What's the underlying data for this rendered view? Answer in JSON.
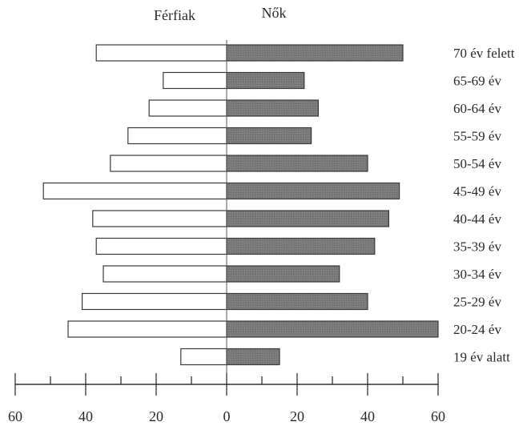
{
  "chart_data": {
    "type": "bar",
    "orientation": "horizontal-diverging",
    "legend": {
      "left": "Férfiak",
      "right": "Nők",
      "placement": "top-center"
    },
    "categories": [
      "70 év felett",
      "65-69 év",
      "60-64 év",
      "55-59 év",
      "50-54 év",
      "45-49 év",
      "40-44 év",
      "35-39 év",
      "30-34 év",
      "25-29 év",
      "20-24 év",
      "19 év alatt"
    ],
    "series": [
      {
        "name": "Férfiak",
        "values": [
          37,
          18,
          22,
          28,
          33,
          52,
          38,
          37,
          35,
          41,
          45,
          13
        ]
      },
      {
        "name": "Nők",
        "values": [
          50,
          22,
          26,
          24,
          40,
          49,
          46,
          42,
          32,
          40,
          60,
          15
        ]
      }
    ],
    "xlim": [
      -60,
      60
    ],
    "xticks": [
      -60,
      -40,
      -20,
      0,
      20,
      40,
      60
    ],
    "xtick_labels": [
      "60",
      "40",
      "20",
      "0",
      "20",
      "40",
      "60"
    ],
    "grid": false,
    "colors": {
      "left_fill": "#ffffff",
      "right_fill": "#7a7a7a",
      "stroke": "#3a3a3a"
    }
  }
}
